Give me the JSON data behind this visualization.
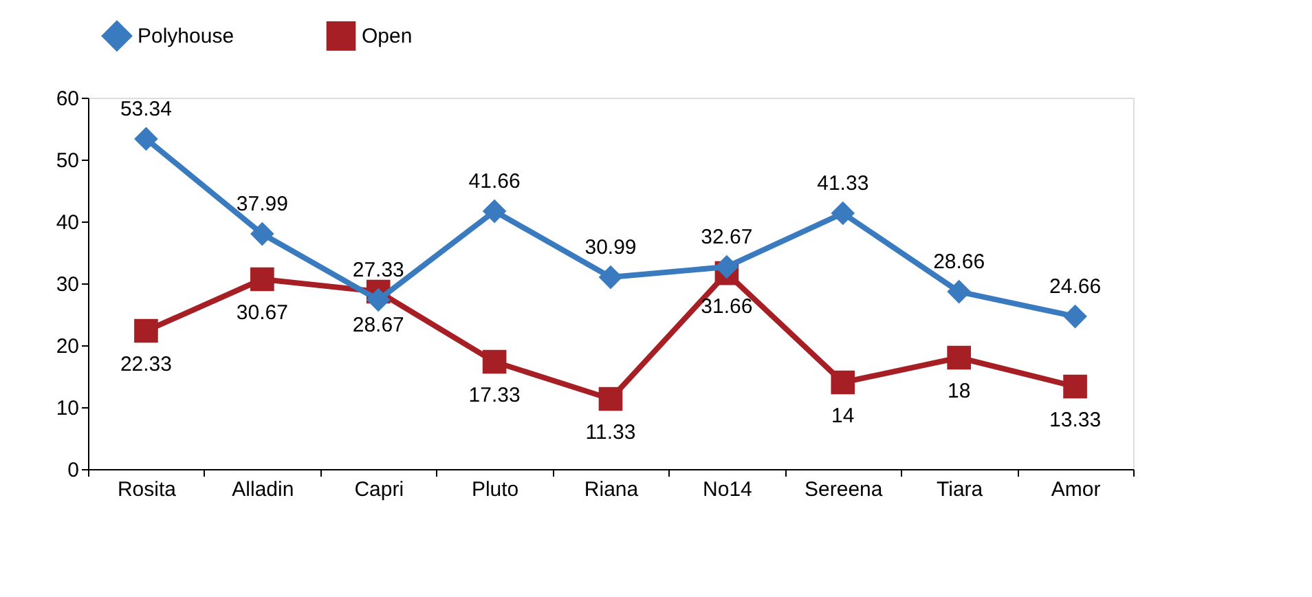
{
  "chart_data": {
    "type": "line",
    "categories": [
      "Rosita",
      "Alladin",
      "Capri",
      "Pluto",
      "Riana",
      "No14",
      "Sereena",
      "Tiara",
      "Amor"
    ],
    "series": [
      {
        "name": "Polyhouse",
        "color": "#3a7bbf",
        "marker": "diamond",
        "values": [
          53.34,
          37.99,
          27.33,
          41.66,
          30.99,
          32.67,
          41.33,
          28.66,
          24.66
        ]
      },
      {
        "name": "Open",
        "color": "#a51f24",
        "marker": "square",
        "values": [
          22.33,
          30.67,
          28.67,
          17.33,
          11.33,
          31.66,
          14,
          18,
          13.33
        ]
      }
    ],
    "ylim": [
      0,
      60
    ],
    "yticks": [
      0,
      10,
      20,
      30,
      40,
      50,
      60
    ],
    "data_labels": true,
    "grid": false,
    "legend": "top",
    "line_style": "solid"
  }
}
